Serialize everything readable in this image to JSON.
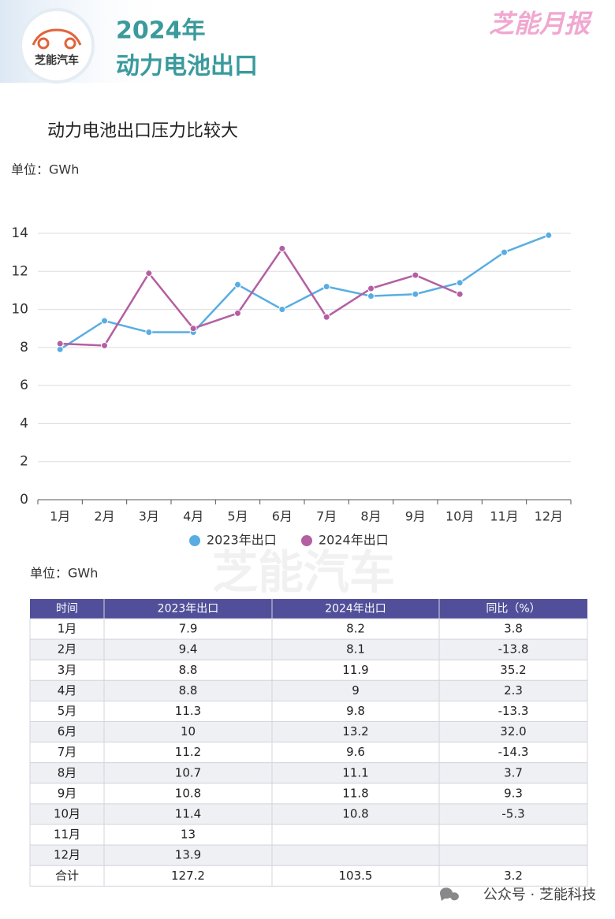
{
  "header": {
    "logo": "芝能汽车",
    "year": "2024年",
    "title": "动力电池出口",
    "brand": "芝能月报"
  },
  "chart_data": {
    "type": "line",
    "title": "动力电池出口压力比较大",
    "y_label": "单位：GWh",
    "categories": [
      "1月",
      "2月",
      "3月",
      "4月",
      "5月",
      "6月",
      "7月",
      "8月",
      "9月",
      "10月",
      "11月",
      "12月"
    ],
    "series": [
      {
        "name": "2023年出口",
        "color": "#58ade2",
        "values": [
          7.9,
          9.4,
          8.8,
          8.8,
          11.3,
          10,
          11.2,
          10.7,
          10.8,
          11.4,
          13,
          13.9
        ]
      },
      {
        "name": "2024年出口",
        "color": "#b45fa2",
        "values": [
          8.2,
          8.1,
          11.9,
          9,
          9.8,
          13.2,
          9.6,
          11.1,
          11.8,
          10.8,
          null,
          null
        ]
      }
    ],
    "ylim": [
      0,
      14
    ],
    "yticks": [
      0,
      2,
      4,
      6,
      8,
      10,
      12,
      14
    ],
    "grid": true,
    "legend": "bottom"
  },
  "watermark": "芝能汽车",
  "table": {
    "unit": "单位：GWh",
    "header": [
      "时间",
      "2023年出口",
      "2024年出口",
      "同比（%）"
    ],
    "rows": [
      [
        "1月",
        "7.9",
        "8.2",
        "3.8"
      ],
      [
        "2月",
        "9.4",
        "8.1",
        "-13.8"
      ],
      [
        "3月",
        "8.8",
        "11.9",
        "35.2"
      ],
      [
        "4月",
        "8.8",
        "9",
        "2.3"
      ],
      [
        "5月",
        "11.3",
        "9.8",
        "-13.3"
      ],
      [
        "6月",
        "10",
        "13.2",
        "32.0"
      ],
      [
        "7月",
        "11.2",
        "9.6",
        "-14.3"
      ],
      [
        "8月",
        "10.7",
        "11.1",
        "3.7"
      ],
      [
        "9月",
        "10.8",
        "11.8",
        "9.3"
      ],
      [
        "10月",
        "11.4",
        "10.8",
        "-5.3"
      ],
      [
        "11月",
        "13",
        null,
        null
      ],
      [
        "12月",
        "13.9",
        null,
        null
      ],
      [
        "合计",
        "127.2",
        "103.5",
        "3.2"
      ]
    ]
  },
  "footer": "公众号 · 芝能科技"
}
